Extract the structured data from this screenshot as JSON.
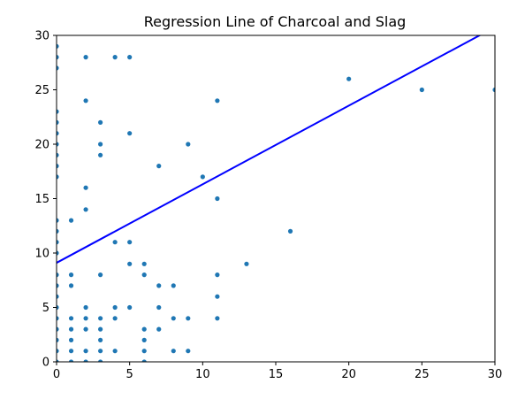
{
  "chart_data": {
    "type": "scatter",
    "title": "Regression Line of Charcoal and Slag",
    "xlabel": "",
    "ylabel": "",
    "xlim": [
      0,
      30
    ],
    "ylim": [
      0,
      30
    ],
    "xticks": [
      "0",
      "5",
      "10",
      "15",
      "20",
      "25",
      "30"
    ],
    "yticks": [
      "0",
      "5",
      "10",
      "15",
      "20",
      "25",
      "30"
    ],
    "grid": false,
    "legend": "none",
    "point_color": "#1f77b4",
    "line_color": "#0000ff",
    "regression_line": {
      "intercept": 9.1,
      "slope": 0.722
    },
    "points": [
      [
        0,
        0
      ],
      [
        0,
        1
      ],
      [
        0,
        2
      ],
      [
        0,
        3
      ],
      [
        0,
        4
      ],
      [
        0,
        5
      ],
      [
        0,
        6
      ],
      [
        0,
        7
      ],
      [
        0,
        8
      ],
      [
        0,
        10
      ],
      [
        0,
        11
      ],
      [
        0,
        12
      ],
      [
        0,
        13
      ],
      [
        0,
        17
      ],
      [
        0,
        18
      ],
      [
        0,
        19
      ],
      [
        0,
        20
      ],
      [
        0,
        21
      ],
      [
        0,
        22
      ],
      [
        0,
        23
      ],
      [
        0,
        27
      ],
      [
        0,
        28
      ],
      [
        0,
        29
      ],
      [
        1,
        0
      ],
      [
        1,
        1
      ],
      [
        1,
        2
      ],
      [
        1,
        3
      ],
      [
        1,
        4
      ],
      [
        1,
        7
      ],
      [
        1,
        8
      ],
      [
        1,
        13
      ],
      [
        2,
        0
      ],
      [
        2,
        1
      ],
      [
        2,
        3
      ],
      [
        2,
        4
      ],
      [
        2,
        5
      ],
      [
        2,
        14
      ],
      [
        2,
        16
      ],
      [
        2,
        24
      ],
      [
        2,
        28
      ],
      [
        3,
        0
      ],
      [
        3,
        1
      ],
      [
        3,
        2
      ],
      [
        3,
        3
      ],
      [
        3,
        4
      ],
      [
        3,
        8
      ],
      [
        3,
        19
      ],
      [
        3,
        20
      ],
      [
        3,
        22
      ],
      [
        4,
        1
      ],
      [
        4,
        4
      ],
      [
        4,
        5
      ],
      [
        4,
        11
      ],
      [
        4,
        28
      ],
      [
        5,
        5
      ],
      [
        5,
        9
      ],
      [
        5,
        11
      ],
      [
        5,
        21
      ],
      [
        5,
        28
      ],
      [
        6,
        0
      ],
      [
        6,
        1
      ],
      [
        6,
        2
      ],
      [
        6,
        3
      ],
      [
        6,
        8
      ],
      [
        6,
        9
      ],
      [
        7,
        3
      ],
      [
        7,
        5
      ],
      [
        7,
        7
      ],
      [
        7,
        18
      ],
      [
        8,
        1
      ],
      [
        8,
        4
      ],
      [
        8,
        7
      ],
      [
        9,
        1
      ],
      [
        9,
        4
      ],
      [
        9,
        20
      ],
      [
        10,
        17
      ],
      [
        11,
        4
      ],
      [
        11,
        6
      ],
      [
        11,
        8
      ],
      [
        11,
        15
      ],
      [
        11,
        24
      ],
      [
        13,
        9
      ],
      [
        16,
        12
      ],
      [
        20,
        26
      ],
      [
        25,
        25
      ],
      [
        30,
        25
      ]
    ]
  }
}
